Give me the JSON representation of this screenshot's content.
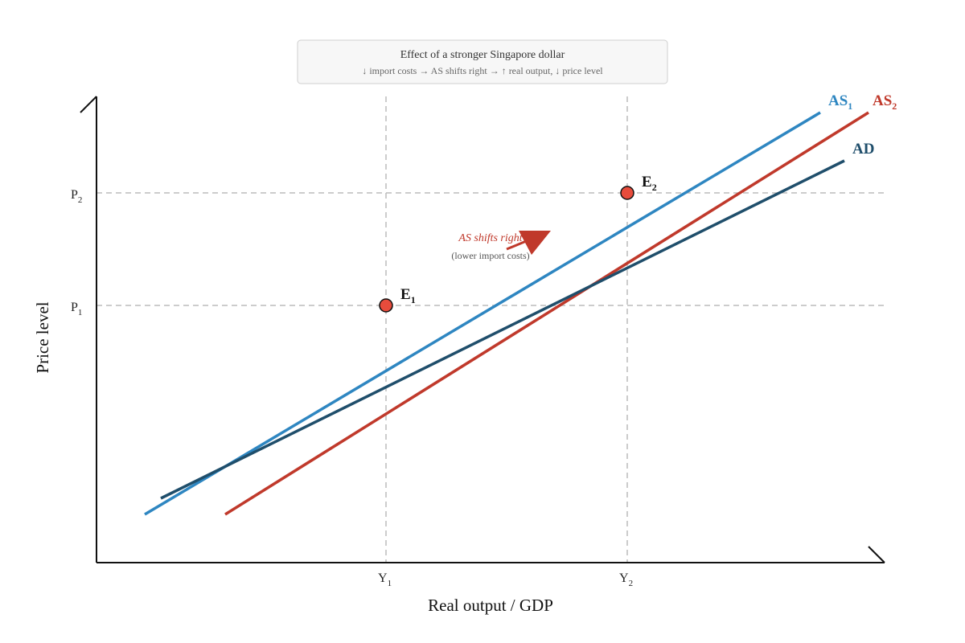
{
  "caption": {
    "title": "Effect of a stronger Singapore dollar",
    "subtitle": "↓ import costs → AS shifts right → ↑ real output, ↓ price level"
  },
  "axes": {
    "y_label": "Price level",
    "x_label": "Real output / GDP",
    "y_ticks": [
      {
        "base": "P",
        "sub": "2"
      },
      {
        "base": "P",
        "sub": "1"
      }
    ],
    "x_ticks": [
      {
        "base": "Y",
        "sub": "1"
      },
      {
        "base": "Y",
        "sub": "2"
      }
    ]
  },
  "curves": {
    "as1": {
      "base": "AS",
      "sub": "1",
      "color": "#2e86c1"
    },
    "as2": {
      "base": "AS",
      "sub": "2",
      "color": "#c0392b"
    },
    "ad": {
      "base": "AD",
      "color": "#1f4e6b"
    }
  },
  "points": {
    "e1": {
      "base": "E",
      "sub": "1"
    },
    "e2": {
      "base": "E",
      "sub": "2"
    },
    "fill": "#e74c3c"
  },
  "annotation": {
    "label": "AS shifts right",
    "note": "(lower import costs)",
    "color": "#c0392b"
  },
  "guide_color": "#bbbbbb"
}
